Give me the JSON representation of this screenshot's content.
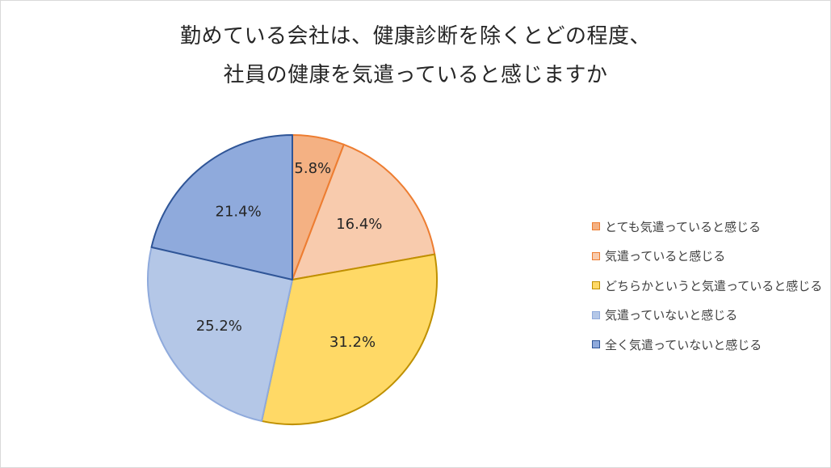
{
  "chart_data": {
    "type": "pie",
    "title": [
      "勤めている会社は、健康診断を除くとどの程度、",
      "社員の健康を気遣っていると感じますか"
    ],
    "legend_position": "right",
    "slices": [
      {
        "label": "とても気遣っていると感じる",
        "value": 5.8,
        "data_label": "5.8%",
        "fill": "#F4B183",
        "stroke": "#ED7D31"
      },
      {
        "label": "気遣っていると感じる",
        "value": 16.4,
        "data_label": "16.4%",
        "fill": "#F8CBAD",
        "stroke": "#ED7D31"
      },
      {
        "label": "どちらかというと気遣っていると感じる",
        "value": 31.2,
        "data_label": "31.2%",
        "fill": "#FFD966",
        "stroke": "#BF9000"
      },
      {
        "label": "気遣っていないと感じる",
        "value": 25.2,
        "data_label": "25.2%",
        "fill": "#B4C7E7",
        "stroke": "#8FAADC"
      },
      {
        "label": "全く気遣っていないと感じる",
        "value": 21.4,
        "data_label": "21.4%",
        "fill": "#8FAADC",
        "stroke": "#2F5597"
      }
    ]
  }
}
